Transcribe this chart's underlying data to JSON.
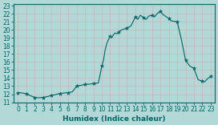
{
  "xlabel": "Humidex (Indice chaleur)",
  "ylabel": "",
  "background_color": "#b2d8d8",
  "grid_color": "#d0e8e8",
  "line_color": "#006666",
  "marker_color": "#006666",
  "xlim": [
    -0.5,
    23.5
  ],
  "ylim": [
    11,
    23.2
  ],
  "xticks": [
    0,
    1,
    2,
    3,
    4,
    5,
    6,
    7,
    8,
    9,
    10,
    11,
    12,
    13,
    14,
    15,
    16,
    17,
    18,
    19,
    20,
    21,
    22,
    23
  ],
  "yticks": [
    11,
    12,
    13,
    14,
    15,
    16,
    17,
    18,
    19,
    20,
    21,
    22,
    23
  ],
  "x": [
    0,
    0.5,
    1,
    1.5,
    2,
    2.5,
    3,
    3.5,
    4,
    4.5,
    5,
    5.5,
    6,
    6.5,
    7,
    7.5,
    8,
    8.5,
    9,
    9.3,
    9.6,
    10,
    10.2,
    10.4,
    10.6,
    10.8,
    11,
    11.2,
    11.4,
    11.6,
    11.8,
    12,
    12.2,
    12.4,
    13,
    13.5,
    14,
    14.3,
    14.6,
    15,
    15.3,
    15.6,
    16,
    16.3,
    16.6,
    17,
    17.3,
    18,
    18.3,
    19,
    19.5,
    20,
    20.5,
    21,
    21.5,
    22,
    22.3,
    22.6,
    23
  ],
  "y": [
    12.2,
    12.15,
    12.05,
    11.8,
    11.6,
    11.55,
    11.6,
    11.7,
    11.85,
    11.95,
    12.1,
    12.15,
    12.2,
    12.3,
    13.0,
    13.1,
    13.2,
    13.25,
    13.3,
    13.35,
    13.4,
    15.5,
    16.2,
    17.5,
    18.3,
    18.8,
    19.2,
    19.0,
    19.4,
    19.6,
    19.5,
    19.7,
    19.9,
    20.0,
    20.2,
    20.5,
    21.6,
    21.3,
    21.8,
    21.5,
    21.3,
    21.7,
    21.8,
    21.6,
    22.0,
    22.3,
    21.9,
    21.4,
    21.1,
    21.0,
    18.8,
    16.2,
    15.5,
    15.2,
    13.8,
    13.6,
    13.55,
    13.9,
    14.2
  ],
  "marker_x": [
    0,
    1,
    2,
    3,
    4,
    5,
    6,
    7,
    8,
    9,
    10,
    11,
    12,
    13,
    14,
    15,
    16,
    17,
    18,
    19,
    20,
    21,
    22,
    23
  ],
  "marker_y": [
    12.2,
    12.05,
    11.6,
    11.6,
    11.85,
    12.1,
    12.2,
    13.0,
    13.2,
    13.3,
    15.5,
    19.2,
    19.7,
    20.2,
    21.6,
    21.5,
    21.8,
    22.3,
    21.4,
    21.0,
    16.2,
    15.2,
    13.6,
    14.2
  ]
}
